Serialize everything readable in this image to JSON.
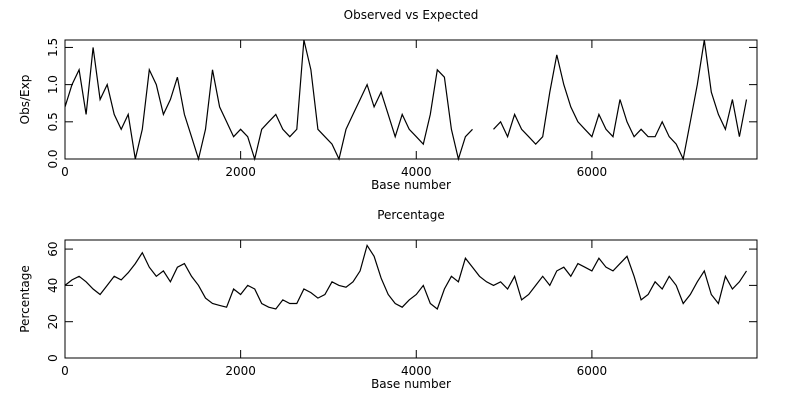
{
  "chart_data": [
    {
      "type": "line",
      "title": "Observed vs Expected",
      "x_label": "Base number",
      "y_label": "Obs/Exp",
      "xlim": [
        0,
        7880
      ],
      "ylim": [
        0,
        1.6
      ],
      "xticks": [
        0,
        2000,
        4000,
        6000
      ],
      "yticks": [
        {
          "value": 0,
          "label": "0.0"
        },
        0.5,
        {
          "value": 1,
          "label": "1.0"
        },
        1.5
      ],
      "x": [
        0,
        80,
        160,
        240,
        320,
        400,
        480,
        560,
        640,
        720,
        800,
        880,
        960,
        1040,
        1120,
        1200,
        1280,
        1360,
        1440,
        1520,
        1600,
        1680,
        1760,
        1840,
        1920,
        2000,
        2080,
        2160,
        2240,
        2320,
        2400,
        2480,
        2560,
        2640,
        2720,
        2800,
        2880,
        2960,
        3040,
        3120,
        3200,
        3280,
        3360,
        3440,
        3520,
        3600,
        3680,
        3760,
        3840,
        3920,
        4000,
        4080,
        4160,
        4240,
        4320,
        4400,
        4480,
        4560,
        4640,
        4720,
        4800,
        4880,
        4960,
        5040,
        5120,
        5200,
        5280,
        5360,
        5440,
        5520,
        5600,
        5680,
        5760,
        5840,
        5920,
        6000,
        6080,
        6160,
        6240,
        6320,
        6400,
        6480,
        6560,
        6640,
        6720,
        6800,
        6880,
        6960,
        7040,
        7120,
        7200,
        7280,
        7360,
        7440,
        7520,
        7600,
        7680,
        7760
      ],
      "series": [
        {
          "name": "Obs/Exp",
          "color": "#000000",
          "values": [
            0.7,
            1.0,
            1.2,
            0.6,
            1.5,
            0.8,
            1.0,
            0.6,
            0.4,
            0.6,
            0.0,
            0.4,
            1.2,
            1.0,
            0.6,
            0.8,
            1.1,
            0.6,
            0.3,
            0.0,
            0.4,
            1.2,
            0.7,
            0.5,
            0.3,
            0.4,
            0.3,
            0.0,
            0.4,
            0.5,
            0.6,
            0.4,
            0.3,
            0.4,
            1.6,
            1.2,
            0.4,
            0.3,
            0.2,
            0.0,
            0.4,
            0.6,
            0.8,
            1.0,
            0.7,
            0.9,
            0.6,
            0.3,
            0.6,
            0.4,
            0.3,
            0.2,
            0.6,
            1.2,
            1.1,
            0.4,
            0.0,
            0.3,
            0.4,
            null,
            null,
            0.4,
            0.5,
            0.3,
            0.6,
            0.4,
            0.3,
            0.2,
            0.3,
            0.9,
            1.4,
            1.0,
            0.7,
            0.5,
            0.4,
            0.3,
            0.6,
            0.4,
            0.3,
            0.8,
            0.5,
            0.3,
            0.4,
            0.3,
            0.3,
            0.5,
            0.3,
            0.2,
            0.0,
            0.5,
            1.0,
            1.6,
            0.9,
            0.6,
            0.4,
            0.8,
            0.3,
            0.8
          ]
        }
      ]
    },
    {
      "type": "line",
      "title": "Percentage",
      "x_label": "Base number",
      "y_label": "Percentage",
      "xlim": [
        0,
        7880
      ],
      "ylim": [
        0,
        65
      ],
      "xticks": [
        0,
        2000,
        4000,
        6000
      ],
      "yticks": [
        0,
        20,
        40,
        60
      ],
      "x": [
        0,
        80,
        160,
        240,
        320,
        400,
        480,
        560,
        640,
        720,
        800,
        880,
        960,
        1040,
        1120,
        1200,
        1280,
        1360,
        1440,
        1520,
        1600,
        1680,
        1760,
        1840,
        1920,
        2000,
        2080,
        2160,
        2240,
        2320,
        2400,
        2480,
        2560,
        2640,
        2720,
        2800,
        2880,
        2960,
        3040,
        3120,
        3200,
        3280,
        3360,
        3440,
        3520,
        3600,
        3680,
        3760,
        3840,
        3920,
        4000,
        4080,
        4160,
        4240,
        4320,
        4400,
        4480,
        4560,
        4640,
        4720,
        4800,
        4880,
        4960,
        5040,
        5120,
        5200,
        5280,
        5360,
        5440,
        5520,
        5600,
        5680,
        5760,
        5840,
        5920,
        6000,
        6080,
        6160,
        6240,
        6320,
        6400,
        6480,
        6560,
        6640,
        6720,
        6800,
        6880,
        6960,
        7040,
        7120,
        7200,
        7280,
        7360,
        7440,
        7520,
        7600,
        7680,
        7760
      ],
      "series": [
        {
          "name": "Percentage",
          "color": "#000000",
          "values": [
            40,
            43,
            45,
            42,
            38,
            35,
            40,
            45,
            43,
            47,
            52,
            58,
            50,
            45,
            48,
            42,
            50,
            52,
            45,
            40,
            33,
            30,
            29,
            28,
            38,
            35,
            40,
            38,
            30,
            28,
            27,
            32,
            30,
            30,
            38,
            36,
            33,
            35,
            42,
            40,
            39,
            42,
            48,
            62,
            56,
            44,
            35,
            30,
            28,
            32,
            35,
            40,
            30,
            27,
            38,
            45,
            42,
            55,
            50,
            45,
            42,
            40,
            42,
            38,
            45,
            32,
            35,
            40,
            45,
            40,
            48,
            50,
            45,
            52,
            50,
            48,
            55,
            50,
            48,
            52,
            56,
            45,
            32,
            35,
            42,
            38,
            45,
            40,
            30,
            35,
            42,
            48,
            35,
            30,
            45,
            38,
            42,
            48
          ]
        }
      ]
    }
  ]
}
